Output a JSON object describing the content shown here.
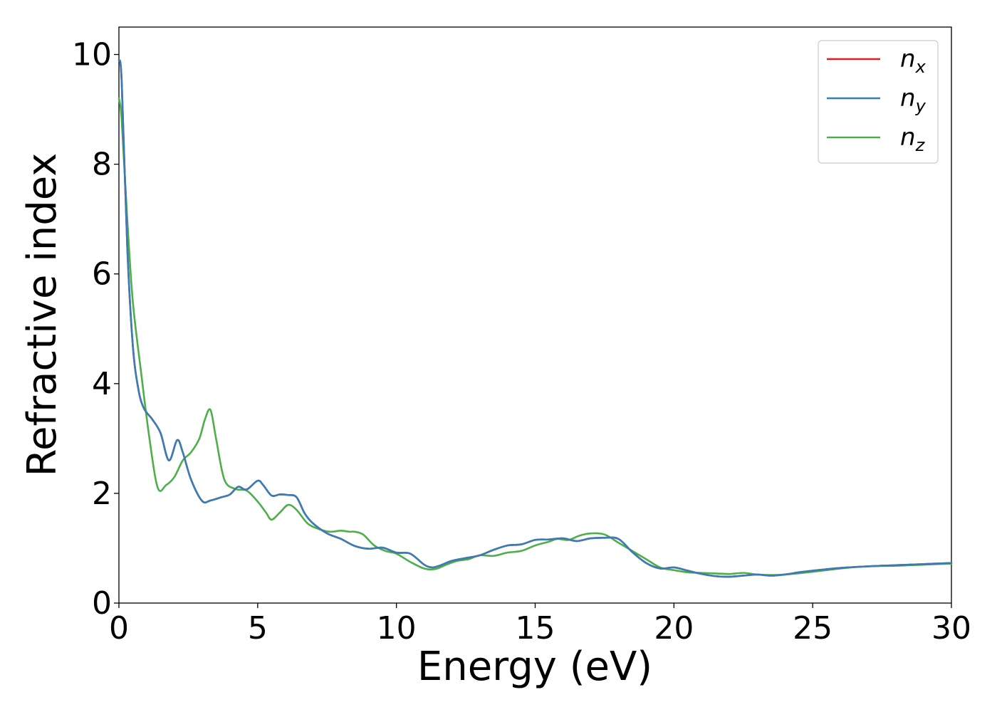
{
  "chart_data": {
    "type": "line",
    "title": "",
    "xlabel": "Energy (eV)",
    "ylabel": "Refractive index",
    "xlim": [
      0,
      30
    ],
    "ylim": [
      0,
      10.5
    ],
    "xticks": [
      "0",
      "5",
      "10",
      "15",
      "20",
      "25",
      "30"
    ],
    "yticks": [
      "0",
      "2",
      "4",
      "6",
      "8",
      "10"
    ],
    "grid": false,
    "legend_position": "top-right",
    "series": [
      {
        "name": "n",
        "subscript": "x",
        "color": "#e41a1c",
        "x": [
          0,
          0.1,
          0.3,
          0.5,
          0.7,
          0.9,
          1.2,
          1.5,
          1.8,
          2.1,
          2.3,
          2.6,
          3.0,
          3.3,
          3.7,
          4.0,
          4.3,
          4.6,
          5.0,
          5.2,
          5.5,
          5.8,
          6.1,
          6.4,
          6.7,
          7.0,
          7.5,
          8.0,
          8.5,
          9.0,
          9.5,
          10.0,
          10.5,
          11.0,
          11.3,
          11.6,
          12.0,
          12.5,
          13.0,
          13.5,
          14.0,
          14.5,
          15.0,
          15.5,
          16.0,
          16.5,
          17.0,
          17.5,
          18.0,
          18.5,
          19.0,
          19.5,
          20.0,
          20.5,
          21.0,
          21.5,
          22.0,
          22.5,
          23.0,
          23.5,
          24.0,
          24.5,
          25.0,
          26.0,
          27.0,
          28.0,
          29.0,
          30.0
        ],
        "y": [
          9.9,
          9.5,
          6.5,
          4.7,
          3.9,
          3.55,
          3.35,
          3.1,
          2.6,
          2.97,
          2.75,
          2.25,
          1.86,
          1.87,
          1.93,
          1.98,
          2.12,
          2.07,
          2.23,
          2.15,
          1.96,
          1.98,
          1.97,
          1.93,
          1.63,
          1.45,
          1.27,
          1.17,
          1.04,
          0.99,
          1.01,
          0.92,
          0.9,
          0.7,
          0.65,
          0.69,
          0.77,
          0.82,
          0.87,
          0.97,
          1.05,
          1.07,
          1.15,
          1.16,
          1.18,
          1.13,
          1.18,
          1.19,
          1.17,
          0.93,
          0.73,
          0.63,
          0.65,
          0.59,
          0.53,
          0.49,
          0.48,
          0.5,
          0.52,
          0.5,
          0.52,
          0.56,
          0.59,
          0.64,
          0.67,
          0.69,
          0.71,
          0.73
        ]
      },
      {
        "name": "n",
        "subscript": "y",
        "color": "#377eb8",
        "x": [
          0,
          0.1,
          0.3,
          0.5,
          0.7,
          0.9,
          1.2,
          1.5,
          1.8,
          2.1,
          2.3,
          2.6,
          3.0,
          3.3,
          3.7,
          4.0,
          4.3,
          4.6,
          5.0,
          5.2,
          5.5,
          5.8,
          6.1,
          6.4,
          6.7,
          7.0,
          7.5,
          8.0,
          8.5,
          9.0,
          9.5,
          10.0,
          10.5,
          11.0,
          11.3,
          11.6,
          12.0,
          12.5,
          13.0,
          13.5,
          14.0,
          14.5,
          15.0,
          15.5,
          16.0,
          16.5,
          17.0,
          17.5,
          18.0,
          18.5,
          19.0,
          19.5,
          20.0,
          20.5,
          21.0,
          21.5,
          22.0,
          22.5,
          23.0,
          23.5,
          24.0,
          24.5,
          25.0,
          26.0,
          27.0,
          28.0,
          29.0,
          30.0
        ],
        "y": [
          9.9,
          9.5,
          6.5,
          4.7,
          3.9,
          3.55,
          3.35,
          3.1,
          2.6,
          2.97,
          2.75,
          2.25,
          1.86,
          1.87,
          1.93,
          1.98,
          2.12,
          2.07,
          2.23,
          2.15,
          1.96,
          1.98,
          1.97,
          1.93,
          1.63,
          1.45,
          1.27,
          1.17,
          1.04,
          0.99,
          1.01,
          0.92,
          0.9,
          0.7,
          0.65,
          0.69,
          0.77,
          0.82,
          0.87,
          0.97,
          1.05,
          1.07,
          1.15,
          1.16,
          1.18,
          1.13,
          1.18,
          1.19,
          1.17,
          0.93,
          0.73,
          0.63,
          0.65,
          0.59,
          0.53,
          0.49,
          0.48,
          0.5,
          0.52,
          0.5,
          0.52,
          0.56,
          0.59,
          0.64,
          0.67,
          0.69,
          0.71,
          0.73
        ]
      },
      {
        "name": "n",
        "subscript": "z",
        "color": "#4daf4a",
        "x": [
          0,
          0.1,
          0.3,
          0.5,
          0.8,
          1.1,
          1.4,
          1.7,
          2.0,
          2.3,
          2.6,
          2.9,
          3.1,
          3.3,
          3.5,
          3.8,
          4.2,
          4.6,
          5.0,
          5.3,
          5.5,
          5.8,
          6.1,
          6.4,
          6.8,
          7.2,
          7.6,
          8.0,
          8.3,
          8.5,
          8.8,
          9.2,
          9.6,
          10.0,
          10.5,
          11.0,
          11.4,
          11.8,
          12.2,
          12.6,
          13.0,
          13.5,
          14.0,
          14.5,
          15.0,
          15.5,
          15.8,
          16.2,
          16.6,
          17.0,
          17.5,
          18.0,
          18.5,
          19.0,
          19.5,
          20.0,
          20.5,
          21.0,
          21.5,
          22.0,
          22.5,
          23.0,
          23.5,
          24.0,
          25.0,
          26.0,
          27.0,
          28.0,
          29.0,
          30.0
        ],
        "y": [
          9.2,
          8.8,
          7.0,
          5.5,
          4.2,
          3.0,
          2.1,
          2.15,
          2.3,
          2.6,
          2.75,
          3.0,
          3.35,
          3.52,
          3.0,
          2.25,
          2.08,
          2.05,
          1.85,
          1.65,
          1.52,
          1.65,
          1.79,
          1.7,
          1.45,
          1.35,
          1.3,
          1.32,
          1.3,
          1.3,
          1.25,
          1.05,
          0.95,
          0.9,
          0.75,
          0.63,
          0.62,
          0.7,
          0.77,
          0.8,
          0.87,
          0.86,
          0.92,
          0.95,
          1.05,
          1.12,
          1.17,
          1.15,
          1.23,
          1.27,
          1.25,
          1.1,
          0.95,
          0.8,
          0.65,
          0.6,
          0.56,
          0.55,
          0.54,
          0.53,
          0.55,
          0.52,
          0.51,
          0.52,
          0.57,
          0.63,
          0.67,
          0.68,
          0.7,
          0.72
        ]
      }
    ]
  }
}
